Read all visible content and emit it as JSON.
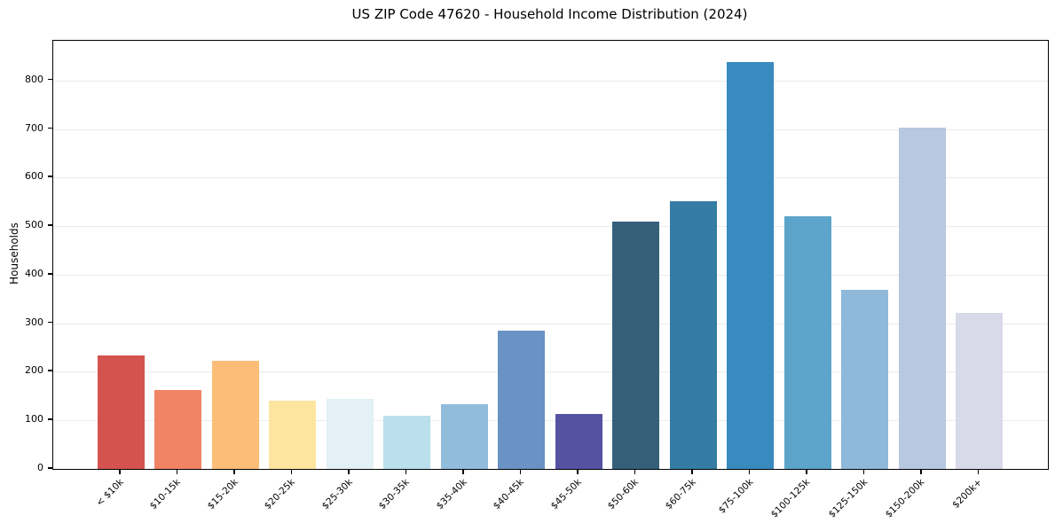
{
  "chart_data": {
    "type": "bar",
    "title": "US ZIP Code 47620 - Household Income Distribution (2024)",
    "xlabel": "",
    "ylabel": "Households",
    "categories": [
      "< $10k",
      "$10-15k",
      "$15-20k",
      "$20-25k",
      "$25-30k",
      "$30-35k",
      "$35-40k",
      "$40-45k",
      "$45-50k",
      "$50-60k",
      "$60-75k",
      "$75-100k",
      "$100-125k",
      "$125-150k",
      "$150-200k",
      "$200k+"
    ],
    "values": [
      233,
      163,
      222,
      140,
      145,
      110,
      134,
      284,
      114,
      510,
      552,
      839,
      520,
      369,
      703,
      322
    ],
    "bar_colors": [
      "#d4534e",
      "#f08465",
      "#fcbd78",
      "#fde59f",
      "#e3f0f6",
      "#badfed",
      "#91bddc",
      "#6992c5",
      "#5552a2",
      "#36607a",
      "#357ca4",
      "#388abf",
      "#5ca4ca",
      "#8fb9da",
      "#b8c8e0",
      "#d8daea"
    ],
    "ylim": [
      0,
      882
    ],
    "yticks": [
      0,
      100,
      200,
      300,
      400,
      500,
      600,
      700,
      800
    ],
    "grid": true,
    "legend_position": "none",
    "background_color": "#ffffff",
    "axis_color": "#000000",
    "grid_color": "#ebebeb"
  }
}
